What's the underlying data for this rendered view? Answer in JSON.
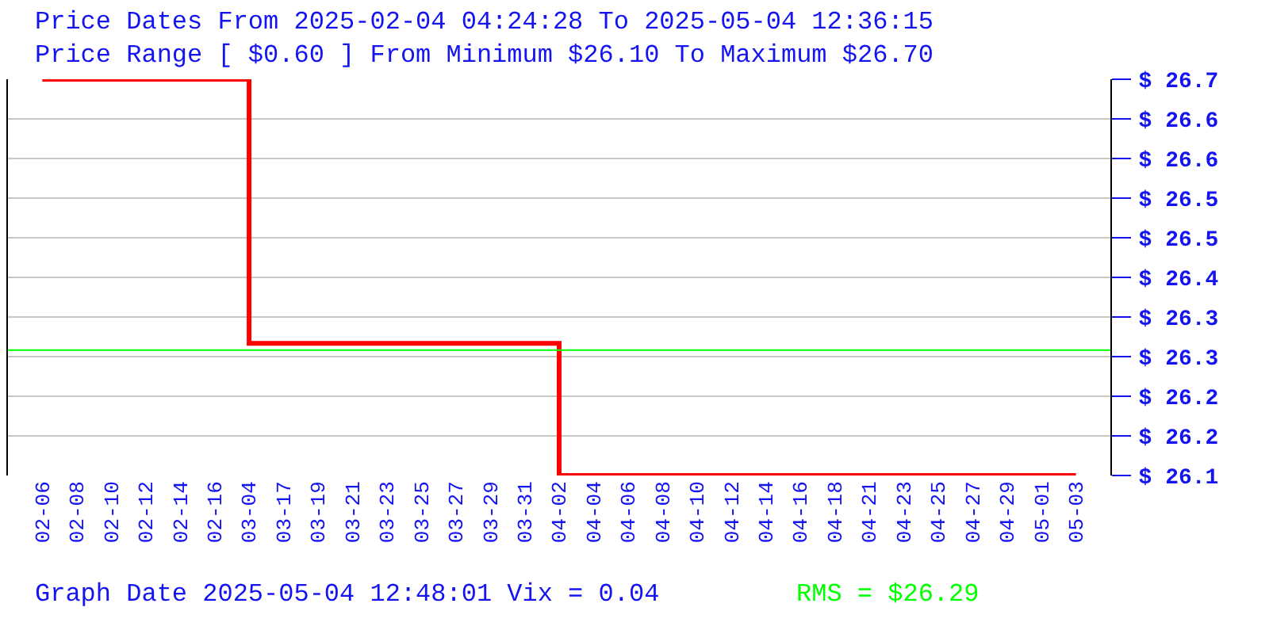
{
  "chart_data": {
    "type": "step",
    "title": "Price Dates From 2025-02-04 04:24:28 To 2025-05-04 12:36:15",
    "subtitle": "Price Range [ $0.60 ] From Minimum $26.10 To Maximum $26.70",
    "annotations": [
      "Graph Date 2025-05-04 12:48:01 Vix = 0.04"
    ],
    "categories": [
      "02-06",
      "02-08",
      "02-10",
      "02-12",
      "02-14",
      "02-16",
      "03-04",
      "03-17",
      "03-19",
      "03-21",
      "03-23",
      "03-25",
      "03-27",
      "03-29",
      "03-31",
      "04-02",
      "04-04",
      "04-06",
      "04-08",
      "04-10",
      "04-12",
      "04-14",
      "04-16",
      "04-18",
      "04-21",
      "04-23",
      "04-25",
      "04-27",
      "04-29",
      "05-01",
      "05-03"
    ],
    "series": [
      {
        "color": "#ff0000",
        "values": [
          26.7,
          26.7,
          26.7,
          26.7,
          26.7,
          26.7,
          26.3,
          26.3,
          26.3,
          26.3,
          26.3,
          26.3,
          26.3,
          26.3,
          26.3,
          26.1,
          26.1,
          26.1,
          26.1,
          26.1,
          26.1,
          26.1,
          26.1,
          26.1,
          26.1,
          26.1,
          26.1,
          26.1,
          26.1,
          26.1,
          26.1
        ]
      }
    ],
    "ylim": [
      26.1,
      26.7
    ],
    "yticks": [
      {
        "value": 26.1,
        "label": "$ 26.1"
      },
      {
        "value": 26.16,
        "label": "$ 26.2"
      },
      {
        "value": 26.22,
        "label": "$ 26.2"
      },
      {
        "value": 26.28,
        "label": "$ 26.3"
      },
      {
        "value": 26.34,
        "label": "$ 26.3"
      },
      {
        "value": 26.4,
        "label": "$ 26.4"
      },
      {
        "value": 26.46,
        "label": "$ 26.5"
      },
      {
        "value": 26.52,
        "label": "$ 26.5"
      },
      {
        "value": 26.58,
        "label": "$ 26.6"
      },
      {
        "value": 26.64,
        "label": "$ 26.6"
      },
      {
        "value": 26.7,
        "label": "$ 26.7"
      }
    ],
    "ref_lines": [
      {
        "axis": "y",
        "value": 26.29,
        "label": "RMS = $26.29",
        "color": "#00ff00"
      }
    ],
    "grid": "y"
  }
}
